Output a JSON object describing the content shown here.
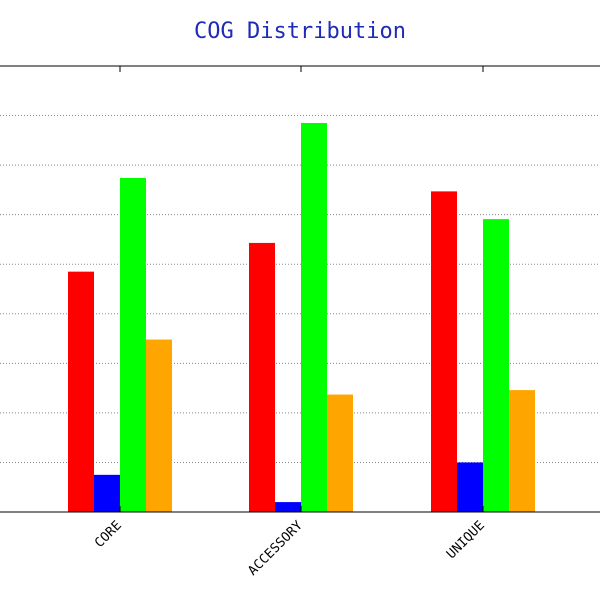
{
  "chart_data": {
    "type": "bar",
    "title": "COG Distribution",
    "title_color": "#1f2bb5",
    "categories": [
      "CORE",
      "ACCESSORY",
      "UNIQUE"
    ],
    "series": [
      {
        "color": "#ff0000",
        "values": [
          48.5,
          54.3,
          64.7
        ]
      },
      {
        "color": "#0000ff",
        "values": [
          7.5,
          2.0,
          10.0
        ]
      },
      {
        "color": "#00ff00",
        "values": [
          67.4,
          78.5,
          59.1
        ]
      },
      {
        "color": "#ffa500",
        "values": [
          34.8,
          23.7,
          24.6
        ]
      }
    ],
    "ylim": [
      0,
      90
    ],
    "grid": true
  }
}
